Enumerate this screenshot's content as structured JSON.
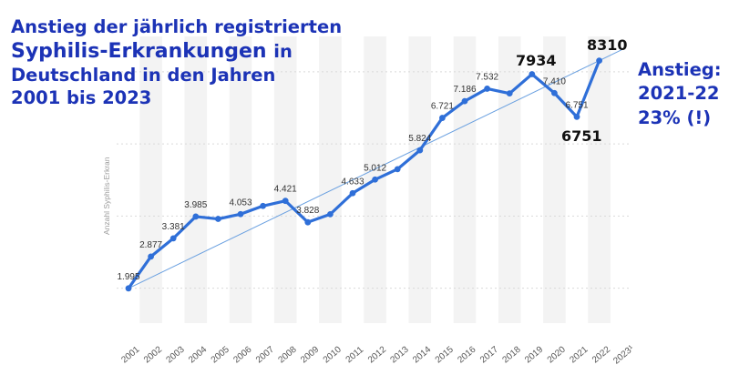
{
  "title": {
    "line1": "Anstieg der jährlich registrierten",
    "line2a": "Syphilis-Erkrankungen",
    "line2b": "in",
    "line3": "Deutschland in den Jahren",
    "line4": "2001 bis 2023"
  },
  "annotation": {
    "line1": "Anstieg:",
    "line2": "2021-22",
    "line3": "23% (!)"
  },
  "highlights": {
    "peak_2019": "7934",
    "low_2021": "6751",
    "top_2022": "8310"
  },
  "colors": {
    "line": "#2f6fd8",
    "trend": "#6aa0e0",
    "accent": "#1c33b6"
  },
  "chart_data": {
    "type": "line",
    "ylabel": "Anzahl Syphilis-Erkran",
    "ylim": [
      0,
      10000
    ],
    "categories": [
      "2001",
      "2002",
      "2003",
      "2004",
      "2005",
      "2006",
      "2007",
      "2008",
      "2009",
      "2010",
      "2011",
      "2012",
      "2013",
      "2014",
      "2015",
      "2016",
      "2017",
      "2018",
      "2019",
      "2020",
      "2021",
      "2022",
      "2023¹"
    ],
    "values": [
      1995,
      2877,
      3381,
      3985,
      3920,
      4053,
      4280,
      4421,
      3828,
      4050,
      4633,
      5012,
      5300,
      5824,
      6721,
      7186,
      7532,
      7400,
      7934,
      7410,
      6751,
      8310,
      null
    ],
    "data_labels": [
      "1.995",
      "2.877",
      "3.381",
      "3.985",
      "",
      "4.053",
      "",
      "4.421",
      "3.828",
      "",
      "4.633",
      "5.012",
      "",
      "5.824",
      "6.721",
      "7.186",
      "7.532",
      "",
      "",
      "7.410",
      "6.751",
      "",
      ""
    ],
    "trend": {
      "start": 1995,
      "end": 8310
    }
  }
}
